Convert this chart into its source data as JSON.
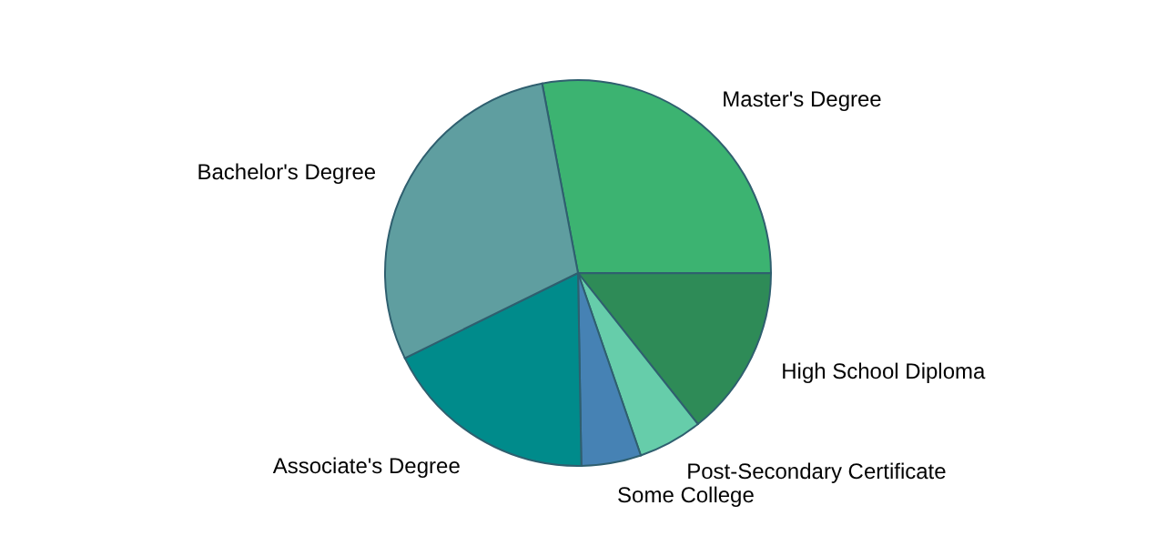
{
  "chart_data": {
    "type": "pie",
    "categories": [
      "Master's Degree",
      "High School Diploma",
      "Post-Secondary Certificate",
      "Some College",
      "Associate's Degree",
      "Bachelor's Degree"
    ],
    "values": [
      28,
      14.3,
      5.4,
      5,
      18,
      29.3
    ],
    "colors": [
      "#3cb371",
      "#2e8b57",
      "#66cdaa",
      "#4682b4",
      "#008b8b",
      "#5f9ea0"
    ]
  }
}
